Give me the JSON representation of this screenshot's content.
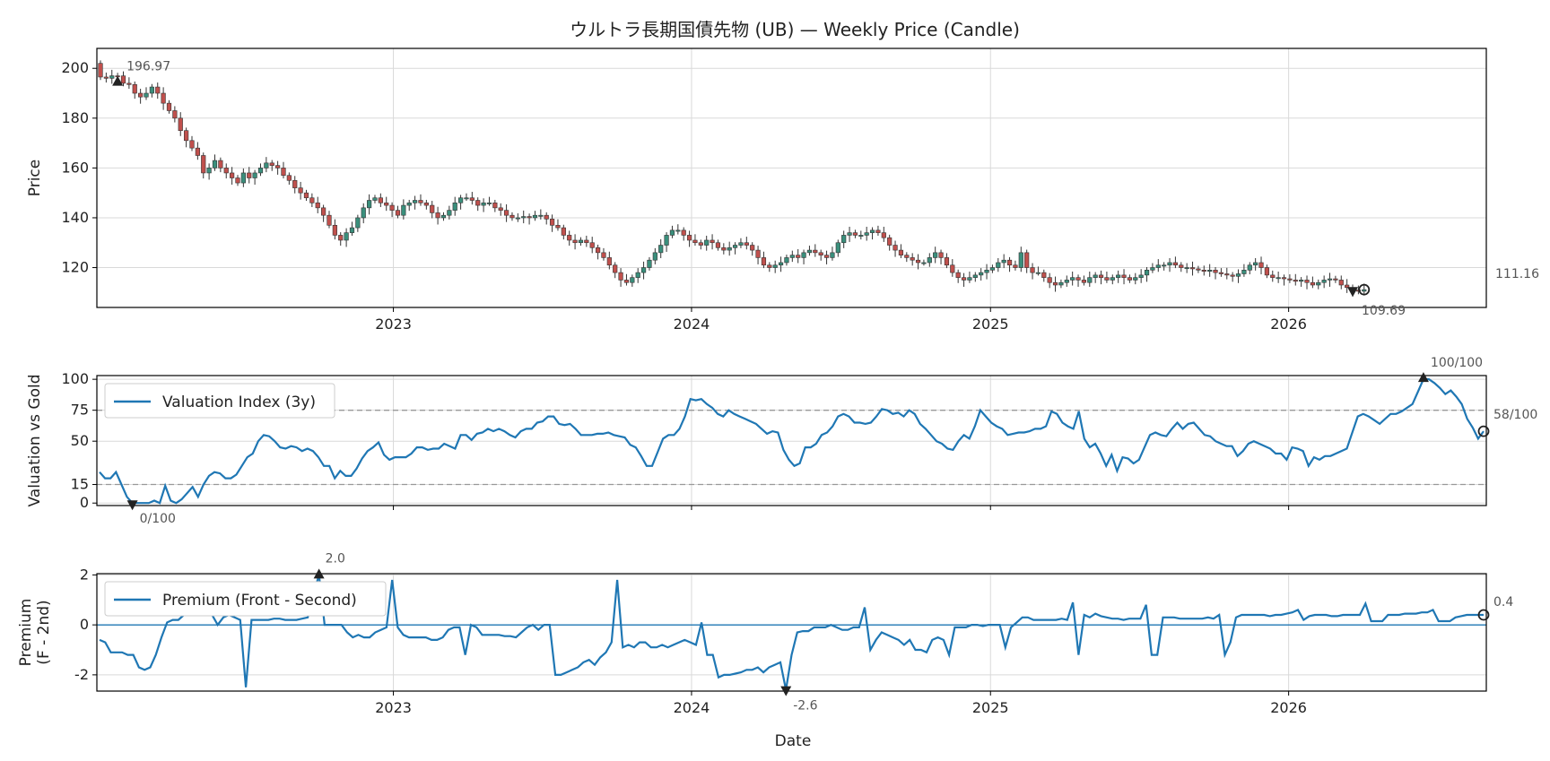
{
  "figure": {
    "title": "ウルトラ長期国債先物 (UB) — Weekly Price (Candle)",
    "xlabel": "Date"
  },
  "colors": {
    "up": "#3a8f7c",
    "down": "#c0504d",
    "wick": "#333333",
    "line": "#1f77b4",
    "marker": "#222222",
    "threshold": "#999999"
  },
  "chart_data": [
    {
      "type": "candlestick",
      "name": "price",
      "ylabel": "Price",
      "xlim": [
        "2022-01-03",
        "2026-08-31"
      ],
      "ylim": [
        104,
        208
      ],
      "yticks": [
        120,
        140,
        160,
        180,
        200
      ],
      "xticks": [
        "2023",
        "2024",
        "2025",
        "2026"
      ],
      "grid": true,
      "close": [
        196.5,
        196.0,
        197.0,
        196.97,
        194.0,
        193.5,
        190.0,
        188.5,
        190.0,
        192.5,
        190.0,
        186.0,
        183.0,
        180.0,
        175.0,
        171.0,
        168.0,
        165.0,
        158.0,
        160.0,
        163.0,
        160.0,
        158.0,
        156.0,
        154.0,
        158.0,
        156.0,
        158.0,
        160.0,
        162.0,
        161.0,
        160.0,
        157.0,
        155.0,
        152.0,
        150.0,
        148.0,
        146.0,
        144.0,
        141.0,
        137.0,
        133.0,
        131.0,
        134.0,
        136.0,
        140.0,
        144.0,
        147.0,
        148.0,
        146.0,
        145.0,
        143.0,
        141.0,
        145.0,
        146.0,
        147.0,
        146.0,
        145.0,
        142.0,
        140.0,
        141.0,
        143.0,
        146.0,
        148.0,
        148.0,
        147.0,
        145.0,
        146.0,
        146.0,
        144.0,
        143.0,
        141.0,
        140.0,
        140.0,
        140.5,
        140.0,
        141.0,
        141.0,
        139.5,
        137.0,
        136.0,
        133.0,
        131.0,
        130.0,
        131.0,
        130.0,
        128.0,
        126.0,
        124.0,
        121.0,
        118.0,
        115.0,
        114.0,
        116.0,
        118.0,
        120.0,
        123.0,
        126.0,
        129.0,
        133.0,
        135.0,
        135.0,
        133.0,
        131.0,
        130.0,
        129.0,
        131.0,
        130.0,
        128.0,
        127.0,
        128.0,
        129.0,
        130.0,
        129.0,
        127.0,
        124.0,
        121.0,
        120.0,
        121.0,
        122.0,
        124.0,
        125.0,
        124.0,
        126.0,
        127.0,
        126.0,
        125.0,
        124.0,
        126.0,
        130.0,
        133.0,
        134.0,
        133.0,
        133.0,
        134.0,
        135.0,
        134.0,
        132.0,
        129.0,
        127.0,
        125.0,
        124.0,
        123.0,
        122.0,
        122.0,
        124.0,
        126.0,
        124.0,
        121.0,
        118.0,
        116.0,
        115.0,
        116.0,
        117.0,
        118.0,
        119.0,
        120.0,
        122.0,
        123.0,
        121.0,
        120.0,
        126.0,
        120.0,
        118.0,
        118.0,
        116.0,
        114.0,
        113.0,
        114.0,
        115.0,
        116.0,
        115.0,
        114.0,
        116.0,
        117.0,
        116.0,
        115.0,
        116.0,
        117.0,
        116.0,
        115.0,
        116.0,
        117.0,
        119.0,
        120.0,
        121.0,
        121.0,
        122.0,
        121.0,
        120.0,
        120.0,
        119.5,
        119.0,
        118.5,
        119.0,
        118.0,
        117.5,
        117.0,
        116.5,
        117.5,
        119.0,
        121.0,
        122.0,
        120.0,
        117.0,
        116.0,
        116.0,
        115.5,
        115.0,
        114.5,
        115.0,
        114.0,
        113.0,
        114.0,
        115.0,
        115.5,
        115.0,
        113.0,
        112.0,
        111.0,
        110.5,
        111.16
      ]
    },
    {
      "type": "line",
      "name": "valuation",
      "ylabel": "Valuation vs Gold",
      "ylim": [
        -2,
        103
      ],
      "yticks": [
        0,
        15,
        50,
        75,
        100
      ],
      "thresholds": [
        15,
        75
      ],
      "series": [
        {
          "name": "Valuation Index (3y)",
          "values": [
            25,
            20,
            20,
            25,
            15,
            5,
            0,
            0,
            0,
            0,
            2,
            0,
            14,
            2,
            0,
            3,
            8,
            13,
            5,
            15,
            22,
            25,
            24,
            20,
            20,
            23,
            30,
            37,
            40,
            50,
            55,
            54,
            50,
            45,
            44,
            46,
            45,
            42,
            44,
            42,
            37,
            30,
            30,
            20,
            26,
            22,
            22,
            28,
            36,
            42,
            45,
            49,
            39,
            35,
            37,
            37,
            37,
            40,
            45,
            45,
            43,
            44,
            44,
            48,
            46,
            44,
            55,
            55,
            51,
            56,
            57,
            60,
            58,
            60,
            58,
            55,
            53,
            58,
            60,
            60,
            65,
            66,
            70,
            70,
            64,
            63,
            64,
            60,
            55,
            55,
            55,
            56,
            56,
            57,
            55,
            54,
            53,
            47,
            45,
            38,
            30,
            30,
            41,
            52,
            55,
            55,
            60,
            70,
            84,
            83,
            84,
            80,
            77,
            72,
            70,
            75,
            72,
            70,
            68,
            66,
            64,
            60,
            56,
            58,
            57,
            43,
            35,
            30,
            32,
            45,
            45,
            48,
            55,
            57,
            62,
            70,
            72,
            70,
            65,
            65,
            64,
            65,
            70,
            76,
            75,
            72,
            73,
            70,
            75,
            72,
            64,
            60,
            55,
            50,
            48,
            44,
            43,
            50,
            55,
            52,
            62,
            75,
            70,
            65,
            62,
            60,
            55,
            56,
            57,
            57,
            58,
            60,
            60,
            62,
            74,
            72,
            65,
            62,
            60,
            74,
            52,
            45,
            48,
            40,
            30,
            39,
            26,
            37,
            36,
            32,
            35,
            45,
            55,
            57,
            55,
            54,
            60,
            65,
            60,
            64,
            65,
            60,
            55,
            54,
            50,
            48,
            46,
            46,
            38,
            42,
            48,
            50,
            48,
            46,
            44,
            40,
            40,
            35,
            45,
            44,
            42,
            30,
            37,
            35,
            38,
            38,
            40,
            42,
            44,
            57,
            70,
            72,
            70,
            67,
            64,
            68,
            72,
            72,
            74,
            77,
            80,
            90,
            100,
            100,
            97,
            93,
            88,
            91,
            86,
            80,
            68,
            61,
            52,
            58
          ]
        }
      ],
      "annotations": [
        {
          "label": "0/100",
          "kind": "min"
        },
        {
          "label": "100/100",
          "kind": "max"
        },
        {
          "label": "58/100",
          "kind": "last"
        }
      ]
    },
    {
      "type": "line",
      "name": "premium",
      "ylabel": "Premium\n(F - 2nd)",
      "ylim": [
        -2.65,
        2.05
      ],
      "yticks": [
        -2,
        0,
        2
      ],
      "zero_line": true,
      "series": [
        {
          "name": "Premium (Front - Second)",
          "values": [
            -0.6,
            -0.7,
            -1.1,
            -1.1,
            -1.1,
            -1.2,
            -1.2,
            -1.7,
            -1.8,
            -1.7,
            -1.2,
            -0.5,
            0.1,
            0.2,
            0.2,
            0.4,
            0.8,
            0.8,
            0.4,
            0.5,
            0.4,
            0.0,
            0.3,
            0.4,
            0.3,
            0.2,
            -2.5,
            0.2,
            0.2,
            0.2,
            0.2,
            0.25,
            0.25,
            0.2,
            0.2,
            0.2,
            0.25,
            0.3,
            1.2,
            2.0,
            0.0,
            0.0,
            0.0,
            0.0,
            -0.3,
            -0.5,
            -0.4,
            -0.5,
            -0.5,
            -0.3,
            -0.2,
            -0.1,
            1.8,
            -0.1,
            -0.4,
            -0.5,
            -0.5,
            -0.5,
            -0.5,
            -0.6,
            -0.6,
            -0.5,
            -0.2,
            -0.1,
            -0.1,
            -1.2,
            0.0,
            -0.1,
            -0.4,
            -0.4,
            -0.4,
            -0.4,
            -0.45,
            -0.45,
            -0.5,
            -0.3,
            -0.1,
            0.0,
            -0.2,
            0.0,
            0.0,
            -2.0,
            -2.0,
            -1.9,
            -1.8,
            -1.7,
            -1.5,
            -1.4,
            -1.6,
            -1.3,
            -1.1,
            -0.7,
            1.8,
            -0.9,
            -0.8,
            -0.9,
            -0.7,
            -0.7,
            -0.9,
            -0.9,
            -0.8,
            -0.9,
            -0.8,
            -0.7,
            -0.6,
            -0.7,
            -0.8,
            0.1,
            -1.2,
            -1.2,
            -2.1,
            -2.0,
            -2.0,
            -1.95,
            -1.9,
            -1.8,
            -1.8,
            -1.7,
            -1.9,
            -1.7,
            -1.6,
            -1.5,
            -2.6,
            -1.2,
            -0.3,
            -0.25,
            -0.25,
            -0.1,
            -0.1,
            -0.1,
            0.0,
            -0.1,
            -0.2,
            -0.2,
            -0.1,
            -0.1,
            0.7,
            -1.0,
            -0.6,
            -0.3,
            -0.4,
            -0.5,
            -0.6,
            -0.8,
            -0.6,
            -1.0,
            -1.0,
            -1.1,
            -0.6,
            -0.5,
            -0.6,
            -1.2,
            -0.1,
            -0.1,
            -0.1,
            0.0,
            0.0,
            -0.05,
            0.0,
            0.0,
            0.0,
            -0.9,
            -0.1,
            0.1,
            0.3,
            0.3,
            0.2,
            0.2,
            0.2,
            0.2,
            0.2,
            0.25,
            0.2,
            0.9,
            -1.2,
            0.4,
            0.3,
            0.45,
            0.35,
            0.3,
            0.25,
            0.25,
            0.2,
            0.25,
            0.25,
            0.25,
            0.8,
            -1.2,
            -1.2,
            0.3,
            0.3,
            0.3,
            0.25,
            0.25,
            0.25,
            0.25,
            0.25,
            0.3,
            0.25,
            0.4,
            -1.2,
            -0.7,
            0.3,
            0.4,
            0.4,
            0.4,
            0.4,
            0.4,
            0.35,
            0.4,
            0.4,
            0.45,
            0.5,
            0.6,
            0.2,
            0.35,
            0.4,
            0.4,
            0.4,
            0.35,
            0.35,
            0.4,
            0.4,
            0.4,
            0.4,
            0.85,
            0.15,
            0.15,
            0.15,
            0.4,
            0.4,
            0.4,
            0.45,
            0.45,
            0.45,
            0.5,
            0.5,
            0.6,
            0.15,
            0.15,
            0.15,
            0.3,
            0.35,
            0.4,
            0.4,
            0.4,
            0.4
          ]
        }
      ],
      "annotations": [
        {
          "label": "2.0",
          "kind": "max"
        },
        {
          "label": "-2.6",
          "kind": "min"
        },
        {
          "label": "0.4",
          "kind": "last"
        }
      ]
    }
  ],
  "price_annotations": [
    {
      "label": "196.97",
      "kind": "max"
    },
    {
      "label": "109.69",
      "kind": "min"
    },
    {
      "label": "111.16",
      "kind": "last"
    }
  ]
}
